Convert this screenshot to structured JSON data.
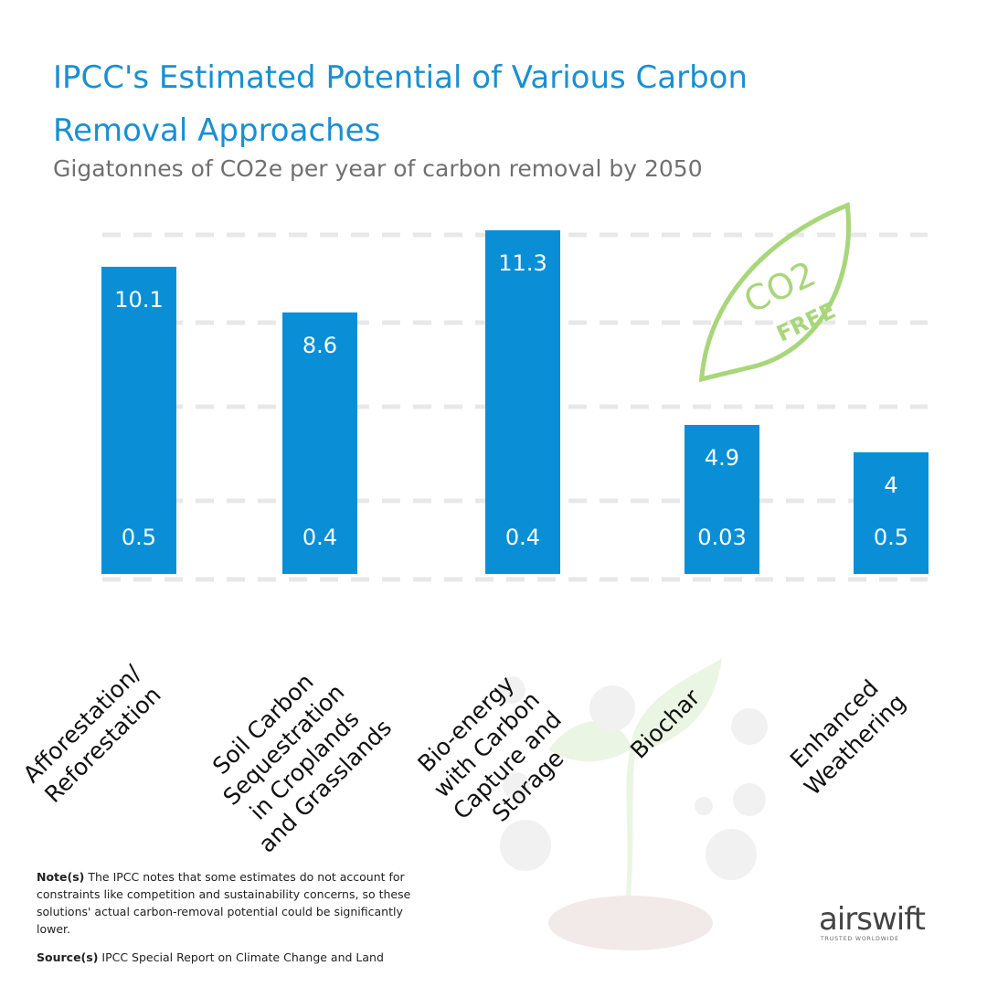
{
  "chart_data": {
    "type": "bar",
    "title": "IPCC's Estimated Potential of Various Carbon Removal Approaches",
    "subtitle": "Gigatonnes of CO2e per year of carbon removal by 2050",
    "categories": [
      "Afforestation/\nReforestation",
      "Soil Carbon\nSequestration\nin Croplands\nand Grasslands",
      "Bio-energy\nwith Carbon\nCapture and\nStorage",
      "Biochar",
      "Enhanced\nWeathering"
    ],
    "values": [
      10.1,
      8.6,
      11.3,
      4.9,
      4
    ],
    "low_values": [
      0.5,
      0.4,
      0.4,
      0.03,
      0.5
    ],
    "color": "#0a8fd6",
    "ylim": [
      0,
      11.3
    ],
    "note_heading": "Note(s)",
    "note": "The IPCC notes that some estimates do not account for constraints like competition and sustainability concerns, so these solutions' actual carbon-removal potential could be significantly lower.",
    "source_heading": "Source(s)",
    "source": "IPCC Special Report on Climate Change and Land",
    "logo": "airswift",
    "logo_tagline": "TRUSTED WORLDWIDE",
    "badge_top": "CO2",
    "badge_bottom": "FREE"
  }
}
